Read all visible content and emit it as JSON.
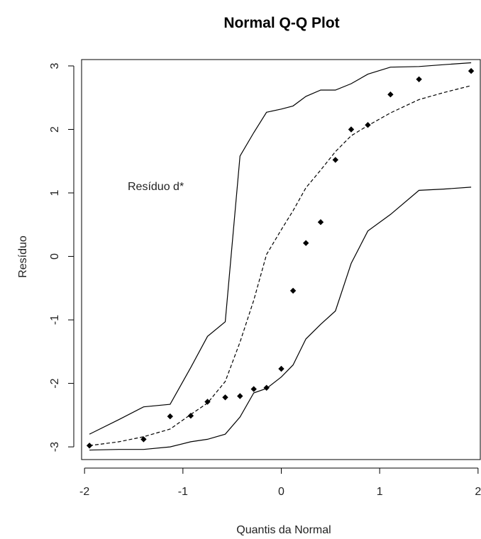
{
  "chart_data": {
    "type": "scatter",
    "title": "Normal Q-Q Plot",
    "xlabel": "Quantis da Normal",
    "ylabel": "Resíduo",
    "xlim": [
      -2.03,
      2.03
    ],
    "ylim": [
      -3.2,
      3.1
    ],
    "xticks": [
      -2,
      -1,
      0,
      1,
      2
    ],
    "yticks": [
      -3,
      -2,
      -1,
      0,
      1,
      2,
      3
    ],
    "xtick_labels": [
      "-2",
      "-1",
      "0",
      "1",
      "2"
    ],
    "ytick_labels": [
      "-3",
      "-2",
      "-1",
      "0",
      "1",
      "2",
      "3"
    ],
    "annotation": "Resíduo d*",
    "grid": false,
    "points": {
      "x": [
        -1.95,
        -1.4,
        -1.13,
        -0.92,
        -0.75,
        -0.57,
        -0.42,
        -0.28,
        -0.15,
        0.0,
        0.12,
        0.25,
        0.4,
        0.55,
        0.71,
        0.88,
        1.11,
        1.4,
        1.93
      ],
      "y": [
        -2.98,
        -2.88,
        -2.52,
        -2.51,
        -2.29,
        -2.22,
        -2.2,
        -2.09,
        -2.07,
        -1.77,
        -0.54,
        0.21,
        0.54,
        1.52,
        2.0,
        2.07,
        2.55,
        2.79,
        2.92
      ]
    },
    "envelope": [
      {
        "style": "solid",
        "x": [
          -1.95,
          -1.65,
          -1.4,
          -1.13,
          -0.92,
          -0.75,
          -0.57,
          -0.42,
          -0.28,
          -0.15,
          0.0,
          0.12,
          0.25,
          0.4,
          0.55,
          0.71,
          0.88,
          1.11,
          1.4,
          1.65,
          1.93
        ],
        "y": [
          -2.8,
          -2.57,
          -2.37,
          -2.33,
          -1.75,
          -1.26,
          -1.03,
          1.58,
          1.95,
          2.27,
          2.32,
          2.37,
          2.52,
          2.62,
          2.62,
          2.72,
          2.87,
          2.98,
          2.99,
          3.02,
          3.05
        ]
      },
      {
        "style": "dashed",
        "x": [
          -1.95,
          -1.65,
          -1.4,
          -1.13,
          -0.92,
          -0.75,
          -0.57,
          -0.42,
          -0.28,
          -0.15,
          0.0,
          0.12,
          0.25,
          0.4,
          0.55,
          0.71,
          0.88,
          1.11,
          1.4,
          1.65,
          1.93
        ],
        "y": [
          -2.98,
          -2.92,
          -2.84,
          -2.72,
          -2.49,
          -2.31,
          -1.97,
          -1.35,
          -0.69,
          0.03,
          0.42,
          0.72,
          1.08,
          1.36,
          1.65,
          1.9,
          2.06,
          2.26,
          2.47,
          2.58,
          2.69
        ]
      },
      {
        "style": "solid",
        "x": [
          -1.95,
          -1.65,
          -1.4,
          -1.13,
          -0.92,
          -0.75,
          -0.57,
          -0.42,
          -0.28,
          -0.15,
          0.0,
          0.12,
          0.25,
          0.4,
          0.55,
          0.71,
          0.88,
          1.11,
          1.4,
          1.65,
          1.93
        ],
        "y": [
          -3.05,
          -3.04,
          -3.04,
          -3.0,
          -2.92,
          -2.88,
          -2.8,
          -2.53,
          -2.15,
          -2.08,
          -1.9,
          -1.71,
          -1.3,
          -1.07,
          -0.86,
          -0.11,
          0.4,
          0.66,
          1.04,
          1.06,
          1.09
        ]
      }
    ]
  }
}
